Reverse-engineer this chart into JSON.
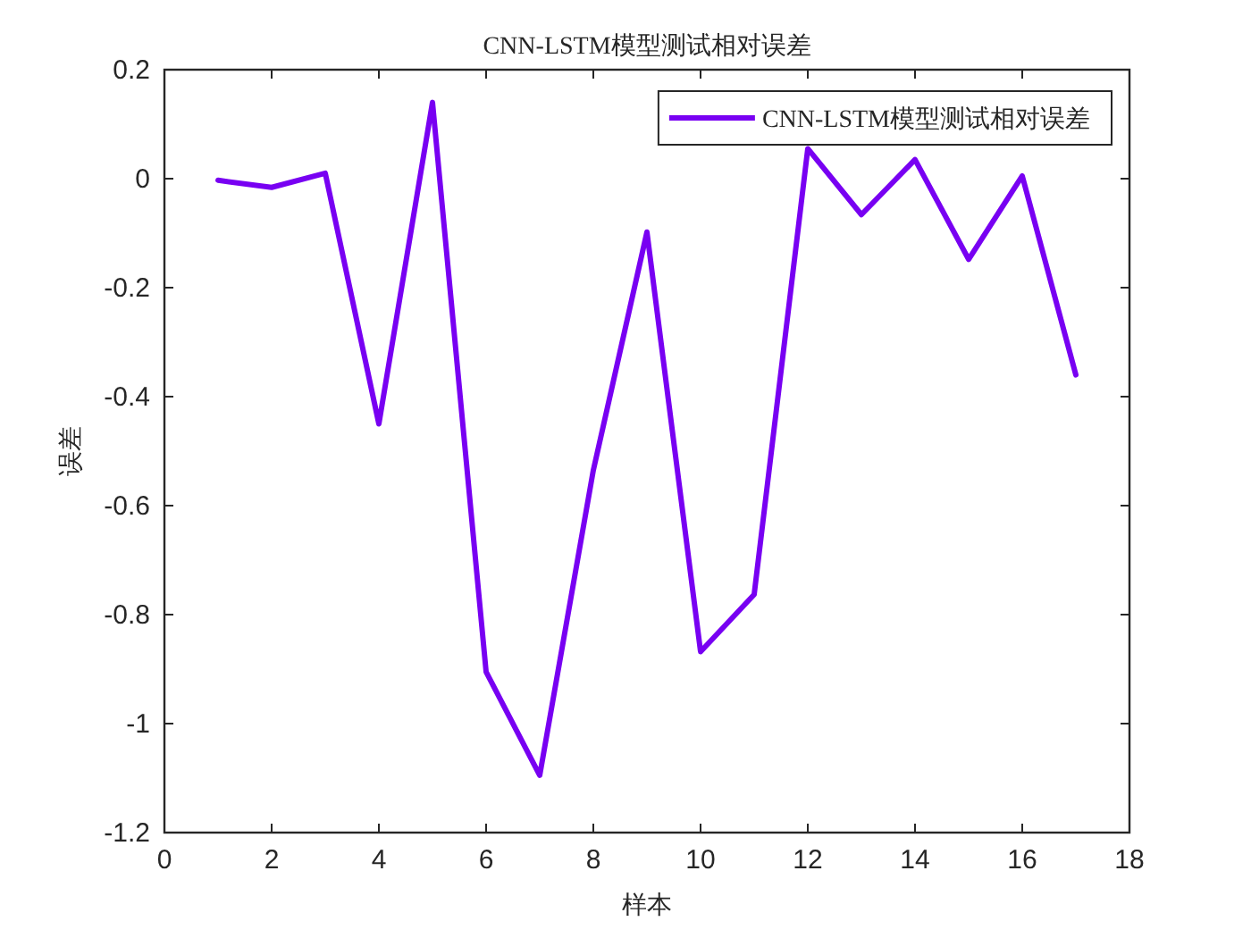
{
  "chart_data": {
    "type": "line",
    "title": "CNN-LSTM模型测试相对误差",
    "xlabel": "样本",
    "ylabel": "误差",
    "x": [
      1,
      2,
      3,
      4,
      5,
      6,
      7,
      8,
      9,
      10,
      11,
      12,
      13,
      14,
      15,
      16,
      17
    ],
    "series": [
      {
        "name": "CNN-LSTM模型测试相对误差",
        "color": "#7800f2",
        "values": [
          -0.003,
          -0.016,
          0.01,
          -0.45,
          0.14,
          -0.905,
          -1.095,
          -0.535,
          -0.098,
          -0.868,
          -0.763,
          0.055,
          -0.066,
          0.035,
          -0.148,
          0.005,
          -0.36
        ]
      }
    ],
    "xlim": [
      0,
      18
    ],
    "xticks": [
      0,
      2,
      4,
      6,
      8,
      10,
      12,
      14,
      16,
      18
    ],
    "ylim": [
      -1.2,
      0.2
    ],
    "yticks": [
      -1.2,
      -1,
      -0.8,
      -0.6,
      -0.4,
      -0.2,
      0,
      0.2
    ],
    "legend": "top right",
    "grid": false,
    "marker": "none",
    "line_style": "solid"
  }
}
